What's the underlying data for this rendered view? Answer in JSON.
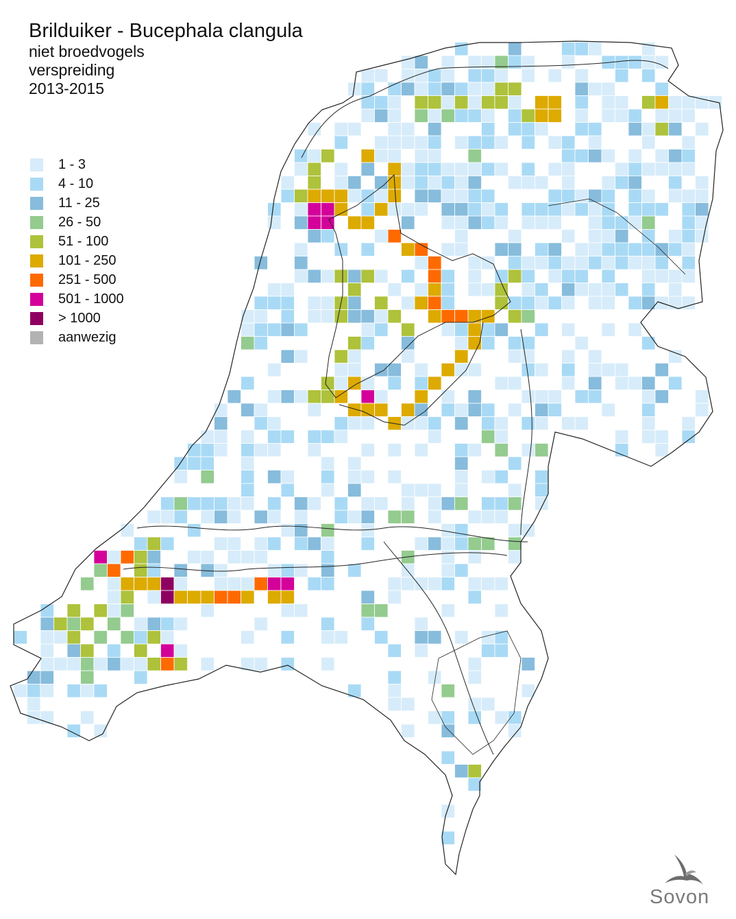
{
  "header": {
    "title": "Brilduiker - Bucephala clangula",
    "subtitle1": "niet broedvogels",
    "subtitle2": "verspreiding",
    "period": "2013-2015"
  },
  "legend": [
    {
      "label": "1 - 3",
      "color": "#d7ecfa"
    },
    {
      "label": "4 - 10",
      "color": "#a9daf5"
    },
    {
      "label": "11 - 25",
      "color": "#87bcdc"
    },
    {
      "label": "26 - 50",
      "color": "#94cb8f"
    },
    {
      "label": "51 - 100",
      "color": "#aec23b"
    },
    {
      "label": "101 - 250",
      "color": "#ddaa00"
    },
    {
      "label": "251 - 500",
      "color": "#ff6a00"
    },
    {
      "label": "501 - 1000",
      "color": "#d4009a"
    },
    {
      "label": "> 1000",
      "color": "#8e0060"
    },
    {
      "label": "aanwezig",
      "color": "#b2b2b2"
    }
  ],
  "map": {
    "icon": "netherlands-outline-map",
    "border_color": "#222222",
    "cell_outline": "#ffffff"
  },
  "logo": {
    "icon": "swallow-icon",
    "text": "Sovon"
  }
}
